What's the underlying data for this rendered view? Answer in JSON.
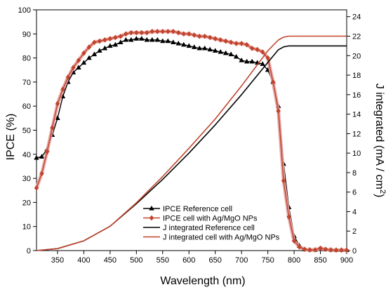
{
  "chart_data": {
    "type": "line",
    "x_axis": {
      "label": "Wavelength (nm)",
      "range": [
        310,
        900
      ],
      "ticks": [
        350,
        400,
        450,
        500,
        550,
        600,
        650,
        700,
        750,
        800,
        850,
        900
      ]
    },
    "y_left": {
      "label": "IPCE (%)",
      "range": [
        0,
        100
      ],
      "ticks": [
        0,
        10,
        20,
        30,
        40,
        50,
        60,
        70,
        80,
        90,
        100
      ]
    },
    "y_right": {
      "label": "J integrated (mA / cm²)",
      "label_main": "J integrated (mA / cm",
      "label_sup": "2",
      "label_end": ")",
      "range": [
        0,
        24.7
      ],
      "ticks": [
        0,
        2,
        4,
        6,
        8,
        10,
        12,
        14,
        16,
        18,
        20,
        22,
        24
      ]
    },
    "grid": false,
    "legend_position": "bottom-center",
    "series": [
      {
        "name": "IPCE Reference cell",
        "axis": "left",
        "color": "#000000",
        "marker": "triangle",
        "x": [
          310,
          320,
          330,
          340,
          350,
          360,
          370,
          380,
          390,
          400,
          410,
          420,
          430,
          440,
          450,
          460,
          470,
          480,
          490,
          500,
          510,
          520,
          530,
          540,
          550,
          560,
          570,
          580,
          590,
          600,
          610,
          620,
          630,
          640,
          650,
          660,
          670,
          680,
          690,
          700,
          710,
          720,
          730,
          740,
          750,
          760,
          770,
          780,
          790,
          800,
          810,
          820,
          830,
          840,
          850,
          860,
          870,
          880,
          890,
          900
        ],
        "y": [
          38.5,
          39,
          42,
          48,
          55,
          64,
          70,
          74,
          76,
          78,
          80,
          81.5,
          83,
          84,
          85,
          85.5,
          86.5,
          87.5,
          87.5,
          88,
          88,
          87.5,
          87.5,
          87.5,
          87,
          87,
          86.5,
          86,
          85.5,
          85,
          84.5,
          84,
          84,
          83.5,
          83,
          82.5,
          82,
          81.5,
          80.5,
          79,
          78.5,
          78.5,
          78,
          77.5,
          75,
          70,
          60,
          36,
          18,
          6,
          2,
          0.5,
          0.3,
          0.3,
          0.8,
          0.5,
          0.3,
          0.2,
          0.2,
          0.2
        ]
      },
      {
        "name": "IPCE cell with Ag/MgO NPs",
        "axis": "left",
        "color": "#c1442c",
        "marker": "diamond",
        "x": [
          310,
          320,
          330,
          340,
          350,
          360,
          370,
          380,
          390,
          400,
          410,
          420,
          430,
          440,
          450,
          460,
          470,
          480,
          490,
          500,
          510,
          520,
          530,
          540,
          550,
          560,
          570,
          580,
          590,
          600,
          610,
          620,
          630,
          640,
          650,
          660,
          670,
          680,
          690,
          700,
          710,
          720,
          730,
          740,
          750,
          760,
          770,
          780,
          790,
          800,
          810,
          820,
          830,
          840,
          850,
          860,
          870,
          880,
          890,
          900
        ],
        "y": [
          26,
          32,
          41,
          51,
          61,
          67,
          72,
          76,
          79,
          82,
          84.5,
          86.5,
          87,
          87.5,
          88,
          88.5,
          89,
          90,
          90.5,
          90.5,
          90.5,
          90.5,
          91,
          91,
          91,
          91,
          91,
          90.5,
          90,
          90,
          89.5,
          89,
          89,
          88.5,
          88,
          87.5,
          87,
          86.5,
          86,
          86,
          85.5,
          84,
          83.5,
          82.5,
          80,
          70,
          58,
          29,
          14,
          4,
          1.5,
          0.5,
          0.3,
          0.3,
          1,
          0.5,
          0.3,
          0.2,
          0.2,
          0.2
        ]
      },
      {
        "name": "J integrated Reference cell",
        "axis": "right",
        "color": "#000000",
        "marker": "none",
        "x": [
          310,
          350,
          400,
          450,
          500,
          550,
          600,
          650,
          700,
          750,
          770,
          780,
          790,
          800,
          820,
          850,
          900
        ],
        "y": [
          0,
          0.2,
          1,
          2.5,
          4.8,
          7.3,
          10,
          12.9,
          16,
          19.3,
          20.6,
          20.9,
          21,
          21,
          21,
          21,
          21
        ]
      },
      {
        "name": "J integrated cell with Ag/MgO NPs",
        "axis": "right",
        "color": "#c1442c",
        "marker": "none",
        "x": [
          310,
          350,
          400,
          450,
          500,
          550,
          600,
          650,
          700,
          750,
          770,
          780,
          790,
          800,
          820,
          850,
          900
        ],
        "y": [
          0,
          0.2,
          1,
          2.5,
          4.9,
          7.6,
          10.5,
          13.5,
          16.9,
          20.5,
          21.6,
          21.9,
          22,
          22,
          22,
          22,
          22
        ]
      }
    ]
  }
}
